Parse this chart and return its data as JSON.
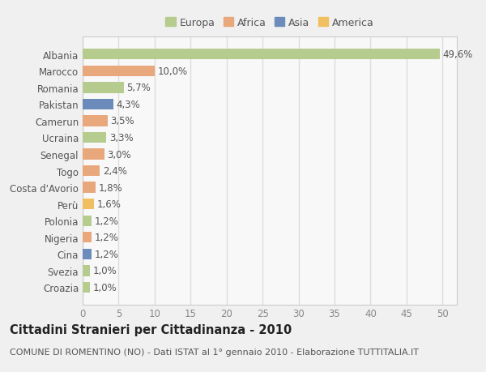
{
  "countries": [
    "Albania",
    "Marocco",
    "Romania",
    "Pakistan",
    "Camerun",
    "Ucraina",
    "Senegal",
    "Togo",
    "Costa d'Avorio",
    "Perù",
    "Polonia",
    "Nigeria",
    "Cina",
    "Svezia",
    "Croazia"
  ],
  "values": [
    49.6,
    10.0,
    5.7,
    4.3,
    3.5,
    3.3,
    3.0,
    2.4,
    1.8,
    1.6,
    1.2,
    1.2,
    1.2,
    1.0,
    1.0
  ],
  "labels": [
    "49,6%",
    "10,0%",
    "5,7%",
    "4,3%",
    "3,5%",
    "3,3%",
    "3,0%",
    "2,4%",
    "1,8%",
    "1,6%",
    "1,2%",
    "1,2%",
    "1,2%",
    "1,0%",
    "1,0%"
  ],
  "bar_colors": [
    "#b5cc8e",
    "#e8a87c",
    "#b5cc8e",
    "#6b8cba",
    "#e8a87c",
    "#b5cc8e",
    "#e8a87c",
    "#e8a87c",
    "#e8a87c",
    "#f0c060",
    "#b5cc8e",
    "#e8a87c",
    "#6b8cba",
    "#b5cc8e",
    "#b5cc8e"
  ],
  "continent_colors": {
    "Europa": "#b5cc8e",
    "Africa": "#e8a87c",
    "Asia": "#6b8cba",
    "America": "#f0c060"
  },
  "xlim": [
    0,
    52
  ],
  "xticks": [
    0,
    5,
    10,
    15,
    20,
    25,
    30,
    35,
    40,
    45,
    50
  ],
  "title": "Cittadini Stranieri per Cittadinanza - 2010",
  "subtitle": "COMUNE DI ROMENTINO (NO) - Dati ISTAT al 1° gennaio 2010 - Elaborazione TUTTITALIA.IT",
  "fig_bg_color": "#f0f0f0",
  "plot_bg_color": "#f8f8f8",
  "grid_color": "#dddddd",
  "bar_height": 0.65,
  "label_fontsize": 8.5,
  "ytick_fontsize": 8.5,
  "xtick_fontsize": 8.5,
  "title_fontsize": 10.5,
  "subtitle_fontsize": 8.0,
  "legend_fontsize": 9.0
}
